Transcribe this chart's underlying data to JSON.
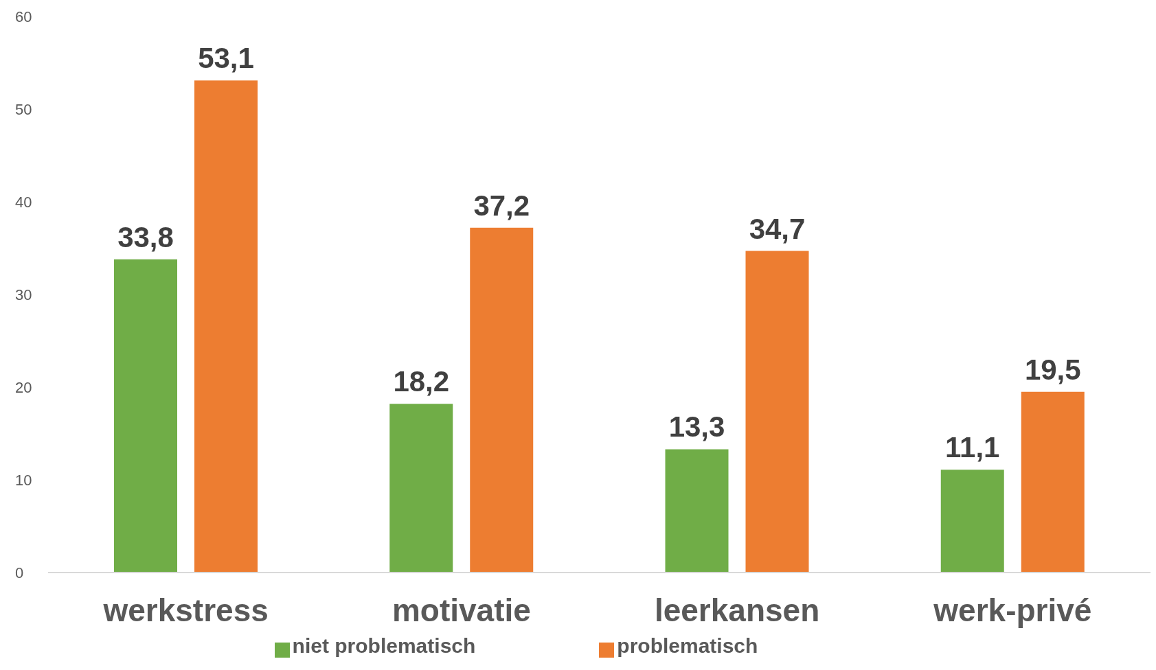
{
  "chart_data": {
    "type": "bar",
    "categories": [
      "werkstress",
      "motivatie",
      "leerkansen",
      "werk-privé"
    ],
    "series": [
      {
        "name": "niet problematisch",
        "color": "#70ad47",
        "values": [
          33.8,
          18.2,
          13.3,
          11.1
        ],
        "value_labels": [
          "33,8",
          "18,2",
          "13,3",
          "11,1"
        ]
      },
      {
        "name": "problematisch",
        "color": "#ed7d31",
        "values": [
          53.1,
          37.2,
          34.7,
          19.5
        ],
        "value_labels": [
          "53,1",
          "37,2",
          "34,7",
          "19,5"
        ]
      }
    ],
    "ylim": [
      0,
      60
    ],
    "yticks": [
      0,
      10,
      20,
      30,
      40,
      50,
      60
    ],
    "grid": false,
    "legend": "bottom"
  }
}
